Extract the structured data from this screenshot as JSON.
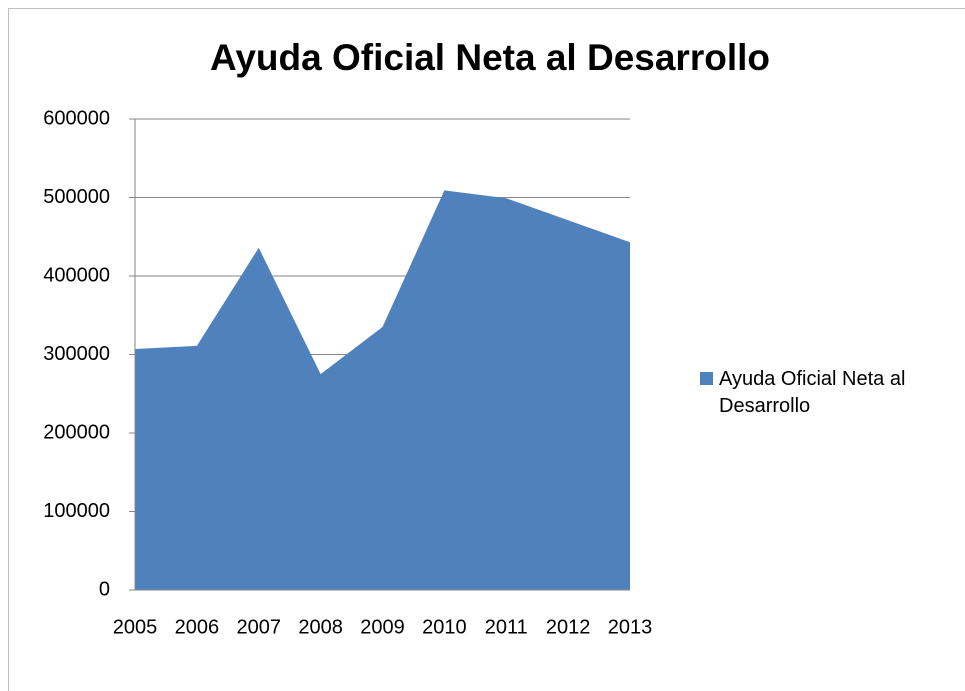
{
  "chart_data": {
    "type": "area",
    "title": "Ayuda Oficial Neta al Desarrollo",
    "categories": [
      "2005",
      "2006",
      "2007",
      "2008",
      "2009",
      "2010",
      "2011",
      "2012",
      "2013"
    ],
    "series": [
      {
        "name": "Ayuda Oficial Neta al Desarrollo",
        "color": "#4f81bd",
        "values": [
          307000,
          311000,
          436000,
          275000,
          335000,
          509000,
          499000,
          471000,
          443000
        ]
      }
    ],
    "ylim": [
      0,
      600000
    ],
    "yticks": [
      0,
      100000,
      200000,
      300000,
      400000,
      500000,
      600000
    ],
    "grid": true,
    "legend": "right"
  }
}
